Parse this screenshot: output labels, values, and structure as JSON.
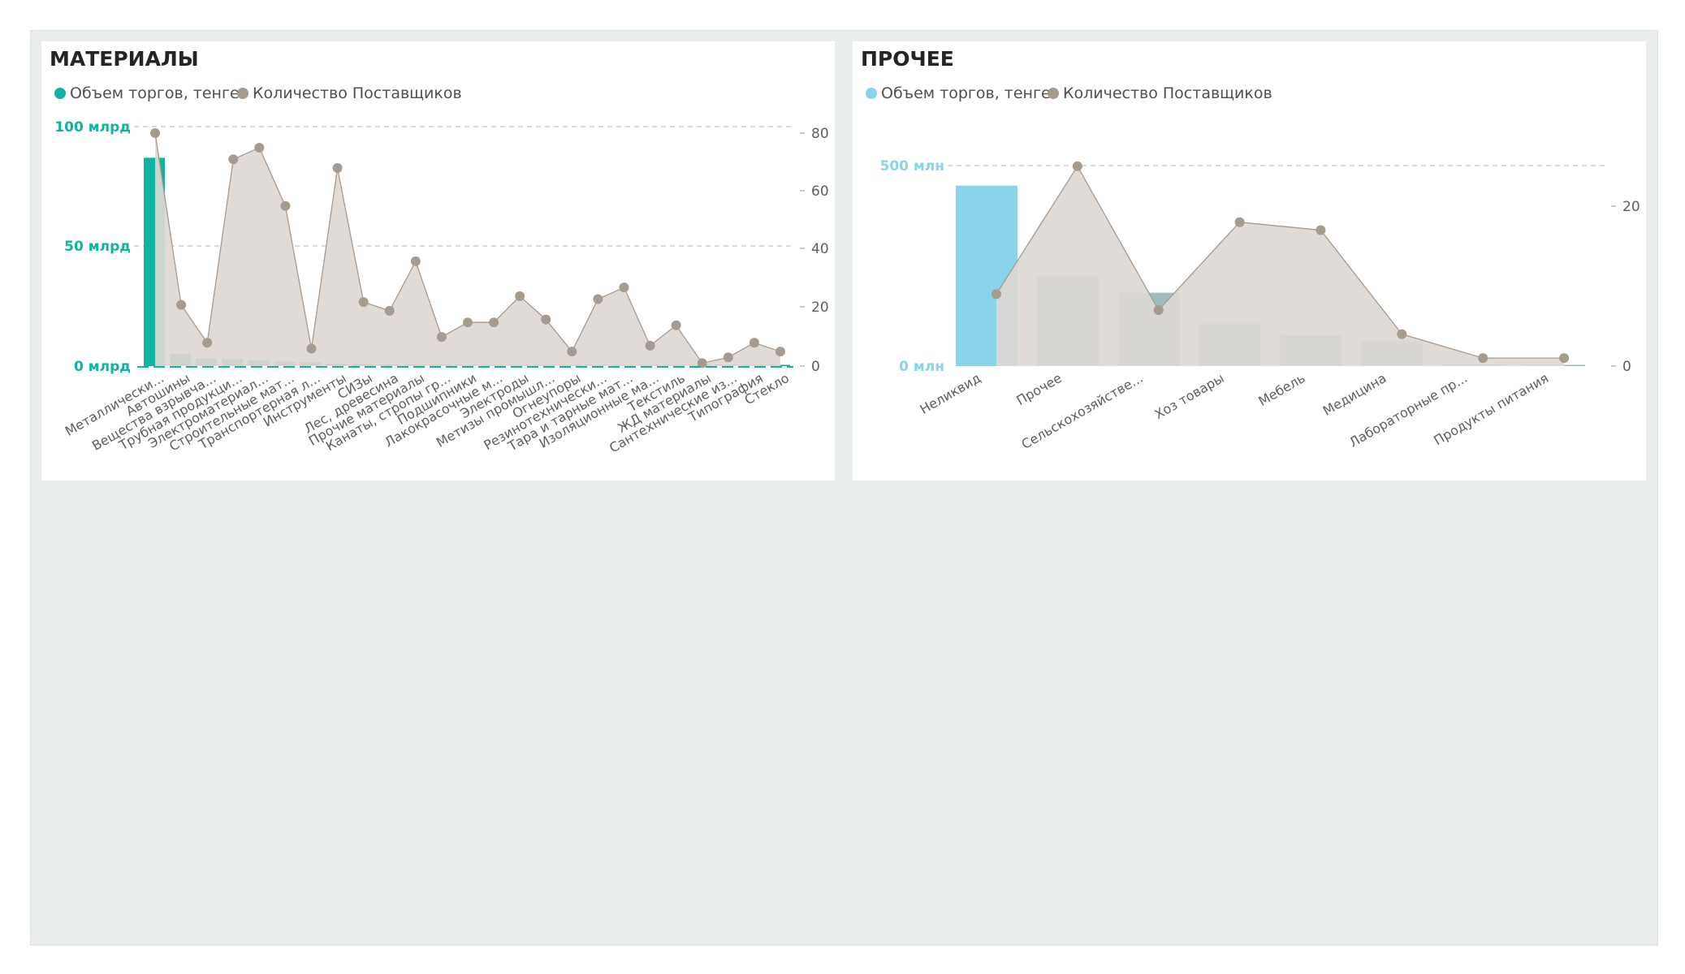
{
  "colors": {
    "teal": "#12b2a3",
    "teal_dark": "#2e9c92",
    "light_blue": "#8ad4eb",
    "steel": "#9ebcc1",
    "area_fill": "#ddd8d3",
    "area_line": "#a79a8e",
    "grid": "#b5b5b5",
    "canvas_bg": "#eaeeeb"
  },
  "charts": [
    {
      "title": "МАТЕРИАЛЫ",
      "legend": [
        {
          "label": "Объем торгов, тенге",
          "color": "#12b2a3"
        },
        {
          "label": "Количество Поставщиков",
          "color": "#a79a8e"
        }
      ],
      "left_ticks": [
        "100 млрд",
        "50 млрд",
        "0 млрд"
      ],
      "right_ticks": [
        "80",
        "60",
        "40",
        "20",
        "0"
      ]
    },
    {
      "title": "ПРОЧЕЕ",
      "legend": [
        {
          "label": "Объем торгов, тенге",
          "color": "#8ad4eb"
        },
        {
          "label": "Количество Поставщиков",
          "color": "#a79a8e"
        }
      ],
      "left_ticks": [
        "500 млн",
        "0 млн"
      ],
      "right_ticks": [
        "20",
        "0"
      ]
    }
  ],
  "chart_data": [
    {
      "type": "bar",
      "title": "МАТЕРИАЛЫ",
      "ylim_left": [
        0,
        100
      ],
      "ylim_right": [
        0,
        80
      ],
      "y_unit": "млрд",
      "categories": [
        "Металлически...",
        "Автошины",
        "Вещества взрывча...",
        "Трубная продукци...",
        "Электроматериал...",
        "Строительные мат...",
        "Транспортерная л...",
        "Инструменты",
        "СИЗы",
        "Лес, древесина",
        "Прочие материалы",
        "Канаты, стропы гр...",
        "Подшипники",
        "Лакокрасочные м...",
        "Электроды",
        "Метизы промышл...",
        "Огнеупоры",
        "Резинотехнически...",
        "Тара и тарные мат...",
        "Изоляционные ма...",
        "Текстиль",
        "ЖД материалы",
        "Сантехнические из...",
        "Типография",
        "Стекло"
      ],
      "series": [
        {
          "name": "Объем торгов, тенге",
          "type": "bar",
          "axis": "left",
          "values": [
            87,
            5,
            3.2,
            3,
            2.4,
            1.8,
            1.6,
            1.1,
            0.8,
            0.7,
            0.6,
            0.55,
            0.5,
            0.45,
            0.4,
            0.38,
            0.35,
            0.32,
            0.3,
            0.28,
            0.25,
            0.22,
            0.2,
            0.15,
            0.1
          ]
        },
        {
          "name": "Количество Поставщиков",
          "type": "area",
          "axis": "right",
          "values": [
            80,
            21,
            8,
            71,
            75,
            55,
            6,
            68,
            22,
            19,
            36,
            10,
            15,
            15,
            24,
            16,
            5,
            23,
            27,
            7,
            14,
            1,
            3,
            8,
            5
          ]
        }
      ],
      "grid": true,
      "legend_position": "top-left"
    },
    {
      "type": "bar",
      "title": "ПРОЧЕЕ",
      "ylim_left": [
        0,
        600
      ],
      "ylim_right": [
        0,
        24
      ],
      "y_unit": "млн",
      "categories": [
        "Неликвид",
        "Прочее",
        "Сельскохозяйстве...",
        "Хоз товары",
        "Мебель",
        "Медицина",
        "Лабораторные пр...",
        "Продукты питания"
      ],
      "series": [
        {
          "name": "Объем торгов, тенге",
          "type": "bar",
          "axis": "left",
          "values": [
            450,
            225,
            183,
            105,
            77,
            62,
            4,
            3
          ]
        },
        {
          "name": "Количество Поставщиков",
          "type": "area",
          "axis": "right",
          "values": [
            9,
            25,
            7,
            18,
            17,
            4,
            1,
            1
          ]
        }
      ],
      "grid": true,
      "legend_position": "top-left"
    }
  ]
}
